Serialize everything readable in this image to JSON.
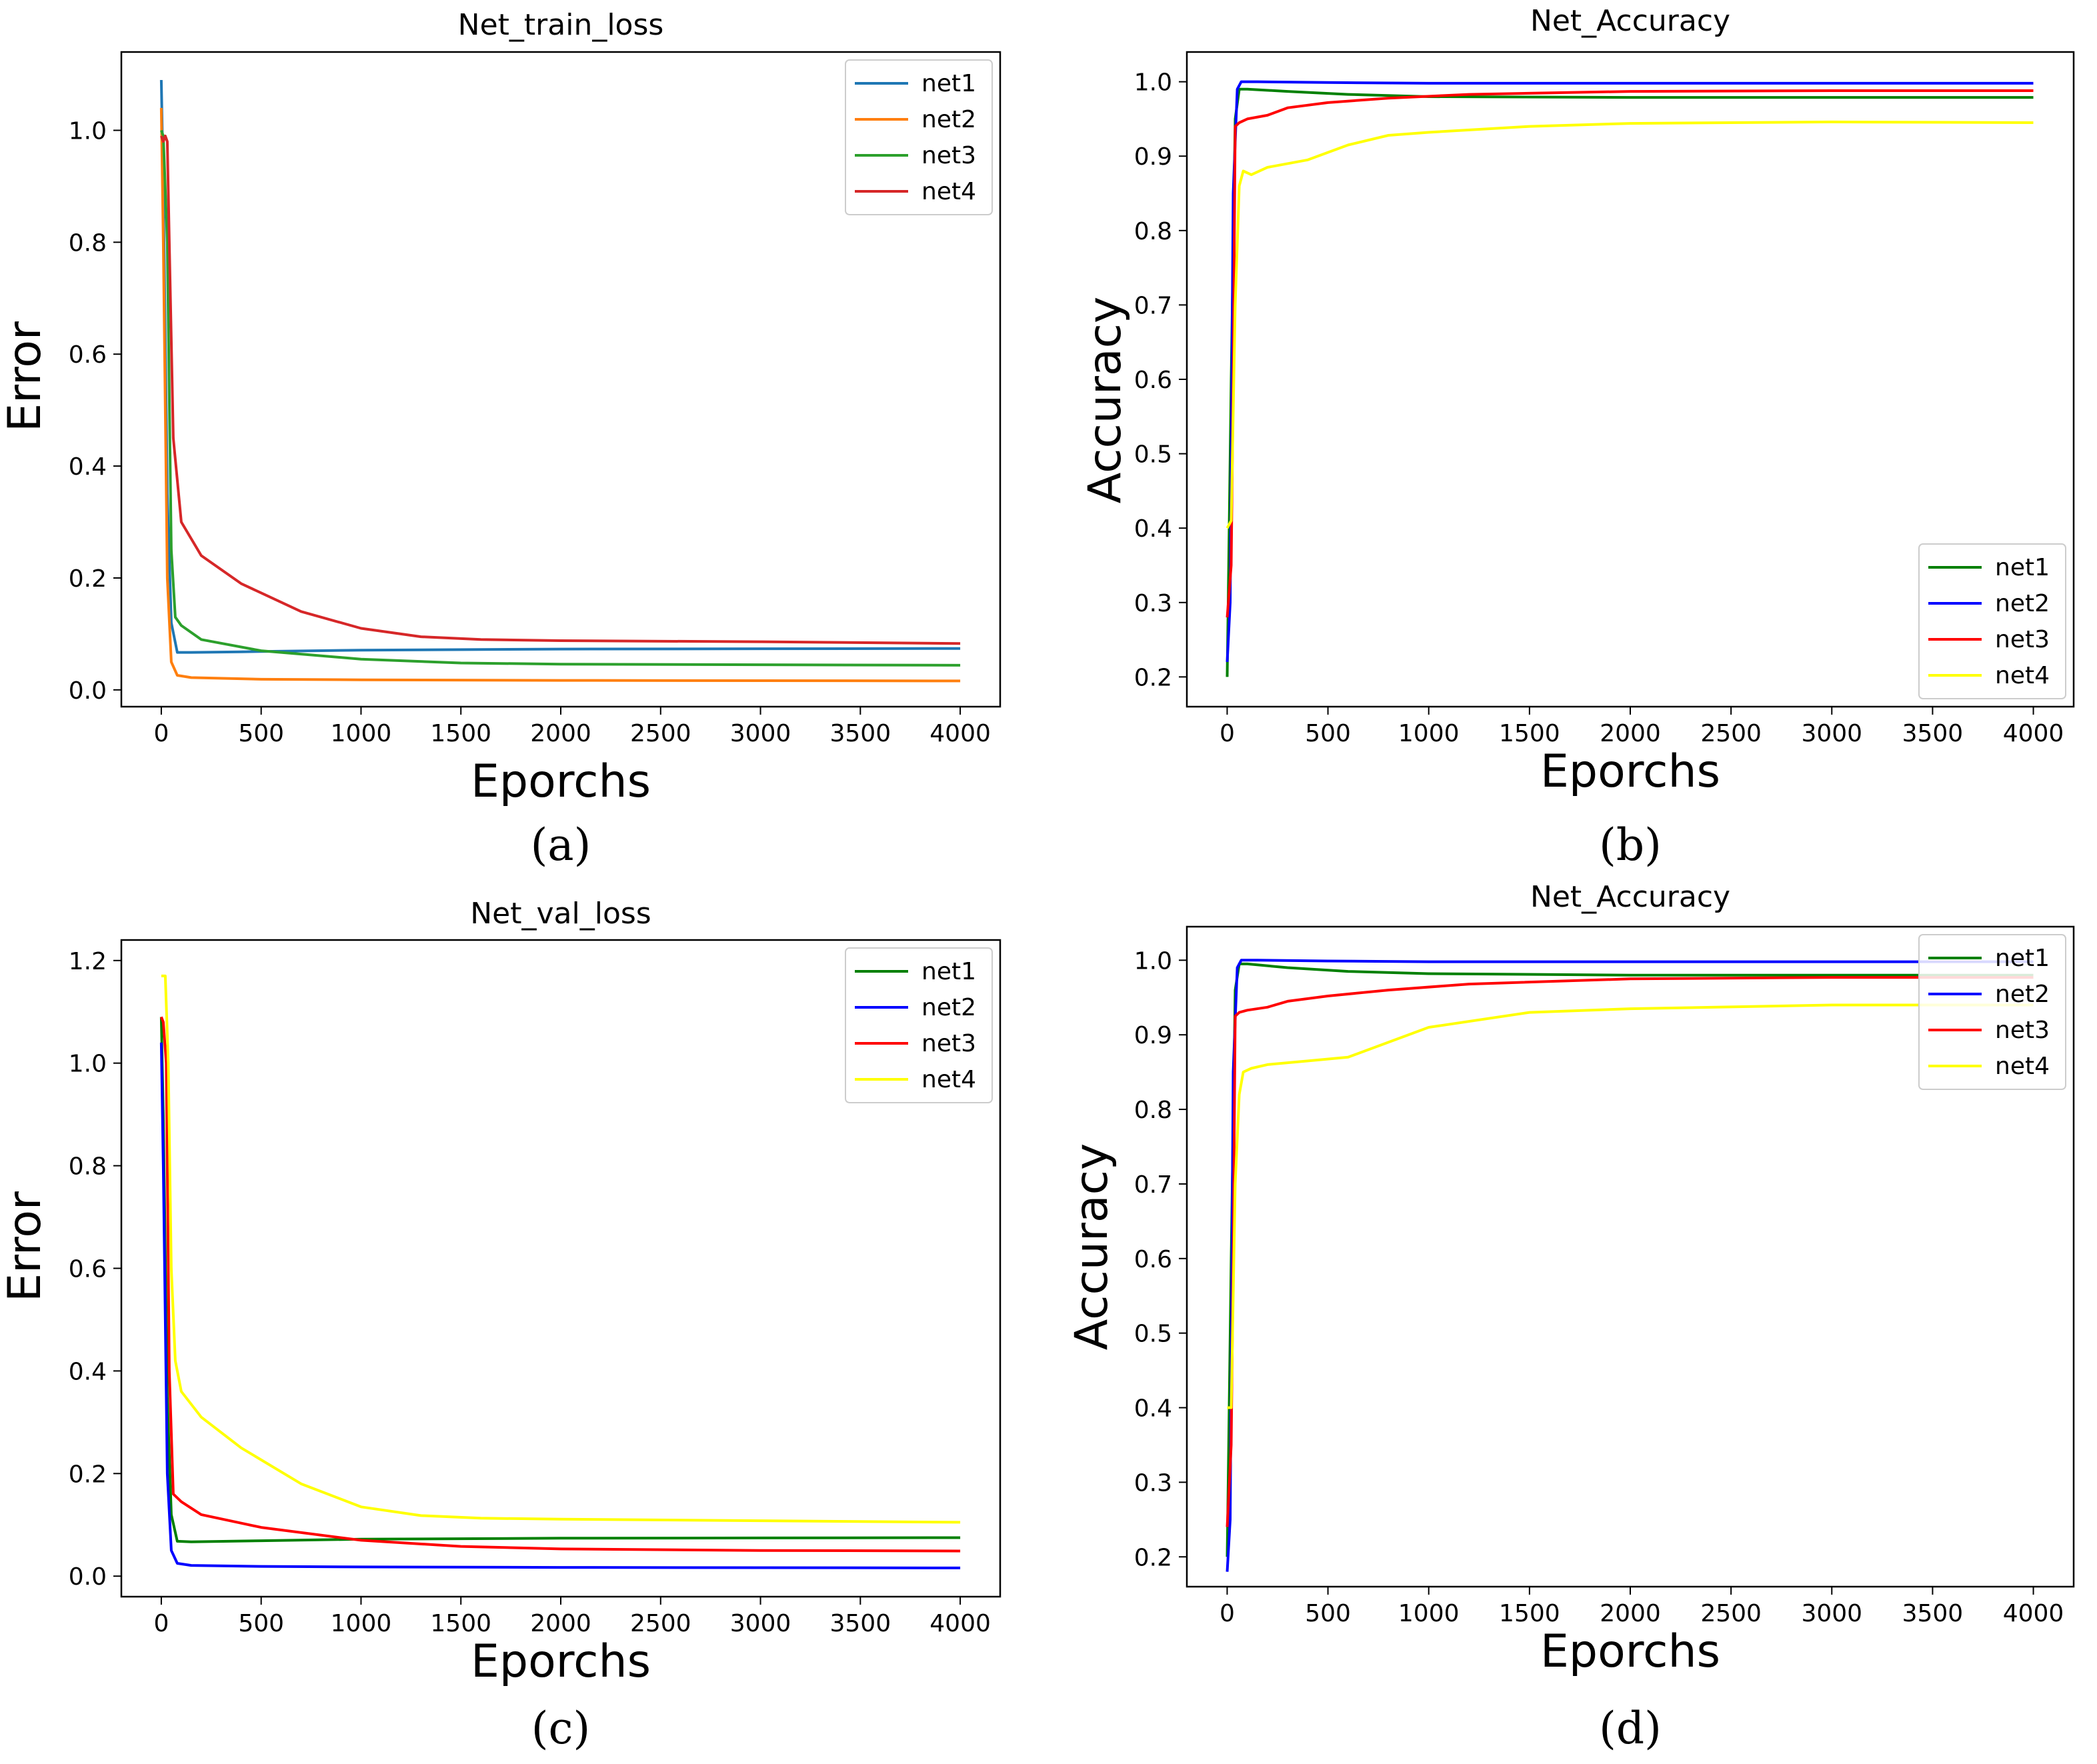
{
  "chart_data": [
    {
      "type": "line",
      "title": "Net_train_loss",
      "xlabel": "Eporchs",
      "ylabel": "Error",
      "caption": "(a)",
      "xlim": [
        -200,
        4200
      ],
      "ylim": [
        -0.03,
        1.14
      ],
      "xticks": [
        0,
        500,
        1000,
        1500,
        2000,
        2500,
        3000,
        3500,
        4000
      ],
      "yticks": [
        0.0,
        0.2,
        0.4,
        0.6,
        0.8,
        1.0
      ],
      "tick_decimals": 1,
      "legend_position": "top-right",
      "series": [
        {
          "name": "net1",
          "color": "#1f77b4",
          "x": [
            0,
            10,
            30,
            50,
            80,
            150,
            400,
            1000,
            2000,
            4000
          ],
          "y": [
            1.09,
            0.9,
            0.35,
            0.12,
            0.067,
            0.067,
            0.068,
            0.071,
            0.073,
            0.074
          ]
        },
        {
          "name": "net2",
          "color": "#ff7f0e",
          "x": [
            0,
            10,
            30,
            50,
            80,
            150,
            500,
            1000,
            2000,
            4000
          ],
          "y": [
            1.04,
            0.8,
            0.2,
            0.05,
            0.026,
            0.022,
            0.019,
            0.018,
            0.017,
            0.016
          ]
        },
        {
          "name": "net3",
          "color": "#2ca02c",
          "x": [
            0,
            10,
            30,
            50,
            70,
            100,
            200,
            500,
            1000,
            1500,
            2000,
            3000,
            4000
          ],
          "y": [
            1.0,
            0.99,
            0.8,
            0.25,
            0.13,
            0.115,
            0.09,
            0.07,
            0.055,
            0.048,
            0.046,
            0.045,
            0.044
          ]
        },
        {
          "name": "net4",
          "color": "#d62728",
          "x": [
            0,
            10,
            20,
            30,
            40,
            60,
            100,
            200,
            400,
            700,
            1000,
            1300,
            1600,
            2000,
            3000,
            4000
          ],
          "y": [
            0.99,
            0.98,
            0.99,
            0.98,
            0.8,
            0.45,
            0.3,
            0.24,
            0.19,
            0.14,
            0.11,
            0.095,
            0.09,
            0.088,
            0.086,
            0.083
          ]
        }
      ]
    },
    {
      "type": "line",
      "title": "Net_Accuracy",
      "xlabel": "Eporchs",
      "ylabel": "Accuracy",
      "caption": "(b)",
      "xlim": [
        -200,
        4200
      ],
      "ylim": [
        0.16,
        1.04
      ],
      "xticks": [
        0,
        500,
        1000,
        1500,
        2000,
        2500,
        3000,
        3500,
        4000
      ],
      "yticks": [
        0.2,
        0.3,
        0.4,
        0.5,
        0.6,
        0.7,
        0.8,
        0.9,
        1.0
      ],
      "tick_decimals": 1,
      "legend_position": "lower-right",
      "series": [
        {
          "name": "net1",
          "color": "#008000",
          "x": [
            0,
            20,
            40,
            60,
            100,
            300,
            600,
            1000,
            2000,
            3000,
            4000
          ],
          "y": [
            0.2,
            0.6,
            0.95,
            0.99,
            0.99,
            0.987,
            0.983,
            0.98,
            0.979,
            0.979,
            0.979
          ]
        },
        {
          "name": "net2",
          "color": "#0000ff",
          "x": [
            0,
            15,
            30,
            50,
            70,
            150,
            500,
            1000,
            2000,
            4000
          ],
          "y": [
            0.22,
            0.3,
            0.85,
            0.99,
            1.0,
            1.0,
            0.999,
            0.998,
            0.998,
            0.998
          ]
        },
        {
          "name": "net3",
          "color": "#ff0000",
          "x": [
            0,
            20,
            30,
            40,
            60,
            100,
            200,
            300,
            500,
            800,
            1200,
            2000,
            3000,
            4000
          ],
          "y": [
            0.28,
            0.35,
            0.6,
            0.94,
            0.945,
            0.95,
            0.955,
            0.965,
            0.972,
            0.978,
            0.983,
            0.987,
            0.988,
            0.988
          ]
        },
        {
          "name": "net4",
          "color": "#ffff00",
          "x": [
            0,
            20,
            40,
            60,
            80,
            120,
            200,
            400,
            600,
            800,
            1000,
            1500,
            2000,
            3000,
            4000
          ],
          "y": [
            0.4,
            0.41,
            0.7,
            0.86,
            0.88,
            0.875,
            0.885,
            0.895,
            0.915,
            0.928,
            0.932,
            0.94,
            0.944,
            0.946,
            0.945
          ]
        }
      ]
    },
    {
      "type": "line",
      "title": "Net_val_loss",
      "xlabel": "Eporchs",
      "ylabel": "Error",
      "caption": "(c)",
      "xlim": [
        -200,
        4200
      ],
      "ylim": [
        -0.04,
        1.24
      ],
      "xticks": [
        0,
        500,
        1000,
        1500,
        2000,
        2500,
        3000,
        3500,
        4000
      ],
      "yticks": [
        0.0,
        0.2,
        0.4,
        0.6,
        0.8,
        1.0,
        1.2
      ],
      "tick_decimals": 1,
      "legend_position": "top-right",
      "series": [
        {
          "name": "net1",
          "color": "#008000",
          "x": [
            0,
            10,
            30,
            50,
            80,
            150,
            500,
            1000,
            2000,
            4000
          ],
          "y": [
            1.09,
            0.9,
            0.35,
            0.12,
            0.068,
            0.067,
            0.069,
            0.072,
            0.074,
            0.075
          ]
        },
        {
          "name": "net2",
          "color": "#0000ff",
          "x": [
            0,
            10,
            30,
            50,
            80,
            150,
            500,
            1000,
            2000,
            4000
          ],
          "y": [
            1.04,
            0.8,
            0.2,
            0.05,
            0.025,
            0.021,
            0.019,
            0.018,
            0.017,
            0.016
          ]
        },
        {
          "name": "net3",
          "color": "#ff0000",
          "x": [
            0,
            10,
            25,
            40,
            60,
            100,
            200,
            500,
            1000,
            1500,
            2000,
            3000,
            4000
          ],
          "y": [
            1.09,
            1.08,
            1.0,
            0.4,
            0.16,
            0.145,
            0.12,
            0.095,
            0.07,
            0.058,
            0.053,
            0.05,
            0.049
          ]
        },
        {
          "name": "net4",
          "color": "#ffff00",
          "x": [
            0,
            20,
            35,
            50,
            70,
            100,
            200,
            400,
            700,
            1000,
            1300,
            1600,
            2000,
            3000,
            4000
          ],
          "y": [
            1.17,
            1.17,
            1.0,
            0.6,
            0.42,
            0.36,
            0.31,
            0.25,
            0.18,
            0.135,
            0.118,
            0.113,
            0.111,
            0.108,
            0.105
          ]
        }
      ]
    },
    {
      "type": "line",
      "title": "Net_Accuracy",
      "xlabel": "Eporchs",
      "ylabel": "Accuracy",
      "caption": "(d)",
      "xlim": [
        -200,
        4200
      ],
      "ylim": [
        0.16,
        1.045
      ],
      "xticks": [
        0,
        500,
        1000,
        1500,
        2000,
        2500,
        3000,
        3500,
        4000
      ],
      "yticks": [
        0.2,
        0.3,
        0.4,
        0.5,
        0.6,
        0.7,
        0.8,
        0.9,
        1.0
      ],
      "tick_decimals": 1,
      "legend_position": "top-right",
      "series": [
        {
          "name": "net1",
          "color": "#008000",
          "x": [
            0,
            20,
            40,
            60,
            100,
            300,
            600,
            1000,
            2000,
            3000,
            4000
          ],
          "y": [
            0.2,
            0.6,
            0.96,
            0.995,
            0.995,
            0.99,
            0.985,
            0.982,
            0.98,
            0.98,
            0.98
          ]
        },
        {
          "name": "net2",
          "color": "#0000ff",
          "x": [
            0,
            15,
            30,
            50,
            70,
            150,
            500,
            1000,
            2000,
            4000
          ],
          "y": [
            0.18,
            0.25,
            0.85,
            0.99,
            1.0,
            1.0,
            0.999,
            0.998,
            0.998,
            0.998
          ]
        },
        {
          "name": "net3",
          "color": "#ff0000",
          "x": [
            0,
            20,
            30,
            40,
            60,
            100,
            200,
            300,
            500,
            800,
            1200,
            2000,
            3000,
            4000
          ],
          "y": [
            0.24,
            0.35,
            0.6,
            0.925,
            0.93,
            0.933,
            0.937,
            0.945,
            0.952,
            0.96,
            0.968,
            0.975,
            0.977,
            0.977
          ]
        },
        {
          "name": "net4",
          "color": "#ffff00",
          "x": [
            0,
            20,
            40,
            60,
            80,
            120,
            200,
            400,
            600,
            800,
            1000,
            1500,
            2000,
            3000,
            4000
          ],
          "y": [
            0.4,
            0.4,
            0.7,
            0.82,
            0.85,
            0.855,
            0.86,
            0.865,
            0.87,
            0.89,
            0.91,
            0.93,
            0.935,
            0.94,
            0.94
          ]
        }
      ]
    }
  ]
}
